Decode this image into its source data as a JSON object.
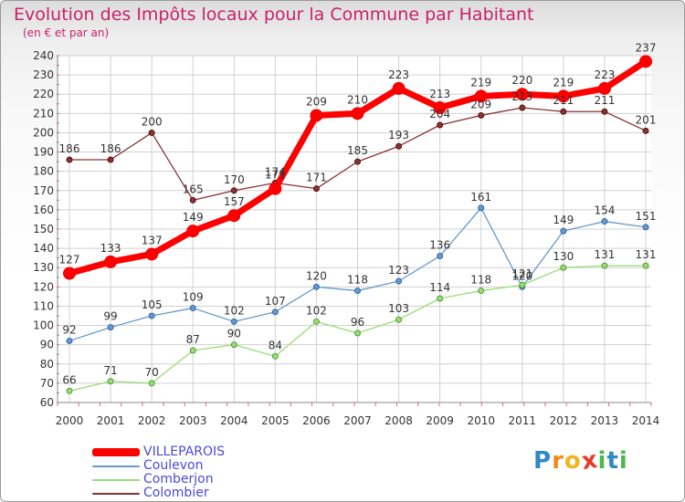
{
  "chart_data": {
    "type": "line",
    "title": "Evolution des Impôts locaux pour la Commune par Habitant",
    "subtitle": "(en € et par an)",
    "x": [
      "2000",
      "2001",
      "2002",
      "2003",
      "2004",
      "2005",
      "2006",
      "2007",
      "2008",
      "2009",
      "2010",
      "2011",
      "2012",
      "2013",
      "2014"
    ],
    "ylim": [
      60,
      240
    ],
    "y_ticks": [
      60,
      70,
      80,
      90,
      100,
      110,
      120,
      130,
      140,
      150,
      160,
      170,
      180,
      190,
      200,
      210,
      220,
      230,
      240
    ],
    "grid": true,
    "legend_position": "bottom-left",
    "series": [
      {
        "name": "VILLEPAROIS",
        "color": "#ff0000",
        "values": [
          127,
          133,
          137,
          149,
          157,
          171,
          209,
          210,
          223,
          213,
          219,
          220,
          219,
          223,
          237
        ]
      },
      {
        "name": "Coulevon",
        "color": "#6699cc",
        "values": [
          92,
          99,
          105,
          109,
          102,
          107,
          120,
          118,
          123,
          136,
          161,
          120,
          149,
          154,
          151
        ]
      },
      {
        "name": "Comberjon",
        "color": "#99dd77",
        "values": [
          66,
          71,
          70,
          87,
          90,
          84,
          102,
          96,
          103,
          114,
          118,
          121,
          130,
          131,
          131
        ]
      },
      {
        "name": "Colombier",
        "color": "#883333",
        "values": [
          186,
          186,
          200,
          165,
          170,
          174,
          171,
          185,
          193,
          204,
          209,
          213,
          211,
          211,
          201
        ]
      }
    ]
  },
  "branding": {
    "letters": [
      "P",
      "r",
      "o",
      "x",
      "i",
      "t",
      "i"
    ],
    "colors": [
      "#2d89c8",
      "#f08c1e",
      "#f0b41e",
      "#e63c2d",
      "#4cb84c",
      "#2d89c8",
      "#4cb84c"
    ]
  }
}
